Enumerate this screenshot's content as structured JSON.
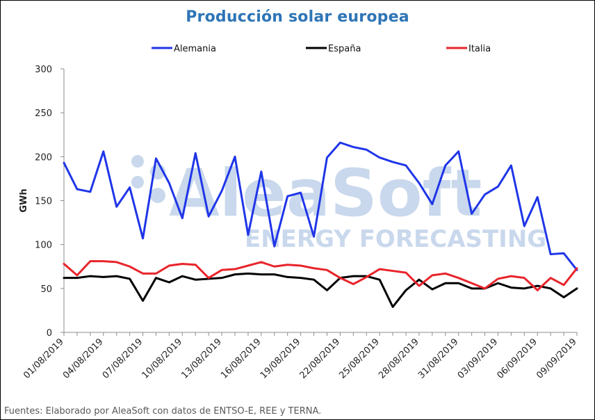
{
  "chart_data": {
    "type": "line",
    "title": "Producción solar europea",
    "ylabel": "GWh",
    "xlabel": "",
    "ylim": [
      0,
      300
    ],
    "yticks": [
      0,
      50,
      100,
      150,
      200,
      250,
      300
    ],
    "legend_position": "top",
    "grid": false,
    "x": [
      "01/08/2019",
      "02/08/2019",
      "03/08/2019",
      "04/08/2019",
      "05/08/2019",
      "06/08/2019",
      "07/08/2019",
      "08/08/2019",
      "09/08/2019",
      "10/08/2019",
      "11/08/2019",
      "12/08/2019",
      "13/08/2019",
      "14/08/2019",
      "15/08/2019",
      "16/08/2019",
      "17/08/2019",
      "18/08/2019",
      "19/08/2019",
      "20/08/2019",
      "21/08/2019",
      "22/08/2019",
      "23/08/2019",
      "24/08/2019",
      "25/08/2019",
      "26/08/2019",
      "27/08/2019",
      "28/08/2019",
      "29/08/2019",
      "30/08/2019",
      "31/08/2019",
      "01/09/2019",
      "02/09/2019",
      "03/09/2019",
      "04/09/2019",
      "05/09/2019",
      "06/09/2019",
      "07/09/2019",
      "08/09/2019",
      "09/09/2019"
    ],
    "x_tick_labels": [
      "01/08/2019",
      "04/08/2019",
      "07/08/2019",
      "10/08/2019",
      "13/08/2019",
      "16/08/2019",
      "19/08/2019",
      "22/08/2019",
      "25/08/2019",
      "28/08/2019",
      "31/08/2019",
      "03/09/2019",
      "06/09/2019",
      "09/09/2019"
    ],
    "series": [
      {
        "name": "Alemania",
        "color": "#1F35E8",
        "values": [
          193,
          163,
          160,
          206,
          143,
          165,
          107,
          198,
          170,
          130,
          204,
          132,
          161,
          200,
          111,
          183,
          98,
          155,
          159,
          109,
          199,
          216,
          211,
          208,
          199,
          194,
          190,
          170,
          146,
          190,
          206,
          135,
          157,
          166,
          190,
          121,
          154,
          89,
          90,
          71
        ]
      },
      {
        "name": "España",
        "color": "#000000",
        "values": [
          62,
          62,
          64,
          63,
          64,
          61,
          36,
          62,
          57,
          64,
          60,
          61,
          62,
          66,
          67,
          66,
          66,
          63,
          62,
          60,
          48,
          62,
          64,
          64,
          60,
          29,
          48,
          60,
          49,
          56,
          56,
          50,
          50,
          56,
          51,
          50,
          53,
          50,
          40,
          50
        ]
      },
      {
        "name": "Italia",
        "color": "#E8242B",
        "values": [
          78,
          65,
          81,
          81,
          80,
          75,
          67,
          67,
          76,
          78,
          77,
          62,
          71,
          72,
          76,
          80,
          75,
          77,
          76,
          73,
          71,
          62,
          55,
          63,
          72,
          70,
          68,
          53,
          65,
          67,
          62,
          56,
          50,
          61,
          64,
          62,
          48,
          62,
          54,
          73
        ]
      }
    ]
  },
  "watermark": {
    "brand": "AleaSoft",
    "tagline": "ENERGY FORECASTING"
  },
  "source_note": "Fuentes: Elaborado por AleaSoft con datos de ENTSO-E, REE y TERNA."
}
